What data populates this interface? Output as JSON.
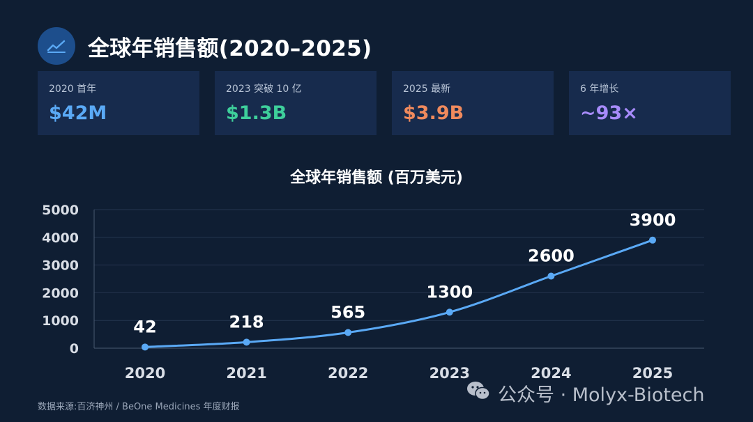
{
  "header": {
    "title": "全球年销售额(2020–2025)",
    "icon": "trend-chart-icon"
  },
  "cards": [
    {
      "label": "2020 首年",
      "value": "$42M",
      "color": "#5aa9f5"
    },
    {
      "label": "2023 突破 10 亿",
      "value": "$1.3B",
      "color": "#3ecf9b"
    },
    {
      "label": "2025 最新",
      "value": "$3.9B",
      "color": "#f08a5d"
    },
    {
      "label": "6 年增长",
      "value": "~93×",
      "color": "#a78bfa"
    }
  ],
  "chart_data": {
    "type": "line",
    "title": "全球年销售额 (百万美元)",
    "x": [
      "2020",
      "2021",
      "2022",
      "2023",
      "2024",
      "2025"
    ],
    "series": [
      {
        "values": [
          42,
          218,
          565,
          1300,
          2600,
          3900
        ]
      }
    ],
    "data_labels": [
      "42",
      "218",
      "565",
      "1300",
      "2600",
      "3900"
    ],
    "ylim": [
      0,
      5000
    ],
    "yticks": [
      0,
      1000,
      2000,
      3000,
      4000,
      5000
    ],
    "ytick_labels": [
      "0",
      "1000",
      "2000",
      "3000",
      "4000",
      "5000"
    ],
    "grid": true,
    "line_color": "#5aa9f5"
  },
  "footer": {
    "source": "数据来源:百济神州 / BeOne Medicines 年度财报"
  },
  "watermark": {
    "text": "公众号 · Molyx-Biotech",
    "icon": "wechat-icon"
  }
}
